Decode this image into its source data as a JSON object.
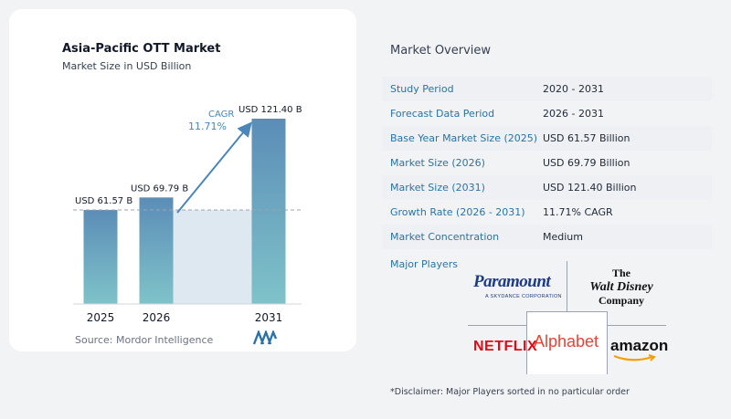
{
  "chart": {
    "title": "Asia-Pacific OTT Market",
    "subtitle": "Market Size in USD Billion",
    "source": "Source: Mordor Intelligence",
    "cagr_label": "CAGR",
    "cagr_value": "11.71%",
    "colors": {
      "bar_top": "#5b8db7",
      "bar_bottom": "#7fc3c9",
      "shade": "#dde8f1",
      "arrow": "#4a86b8",
      "cagr_text": "#4a86b8"
    }
  },
  "chart_data": {
    "type": "bar",
    "categories": [
      "2025",
      "2026",
      "2031"
    ],
    "values": [
      61.57,
      69.79,
      121.4
    ],
    "value_labels": [
      "USD 61.57 B",
      "USD 69.79 B",
      "USD 121.40 B"
    ],
    "title": "Asia-Pacific OTT Market",
    "subtitle": "Market Size in USD Billion",
    "xlabel": "",
    "ylabel": "",
    "ylim": [
      0,
      121.4
    ],
    "grid": false
  },
  "overview": {
    "title": "Market Overview",
    "rows": [
      {
        "label": "Study Period",
        "value": "2020 - 2031"
      },
      {
        "label": "Forecast Data Period",
        "value": "2026 - 2031"
      },
      {
        "label": "Base Year Market Size (2025)",
        "value": "USD 61.57 Billion"
      },
      {
        "label": "Market Size (2026)",
        "value": "USD 69.79 Billion"
      },
      {
        "label": "Market Size (2031)",
        "value": "USD 121.40 Billion"
      },
      {
        "label": "Growth Rate (2026 - 2031)",
        "value": "11.71% CAGR"
      },
      {
        "label": "Market Concentration",
        "value": "Medium"
      }
    ]
  },
  "players": {
    "title": "Major Players",
    "paramount": "Paramount",
    "paramount_sub": "A SKYDANCE CORPORATION",
    "disney_the": "The",
    "disney_name": "Walt Disney",
    "disney_company": "Company",
    "netflix": "NETFLIX",
    "alphabet": "Alphabet",
    "amazon": "amazon"
  },
  "disclaimer": "*Disclaimer: Major Players sorted in no particular order"
}
